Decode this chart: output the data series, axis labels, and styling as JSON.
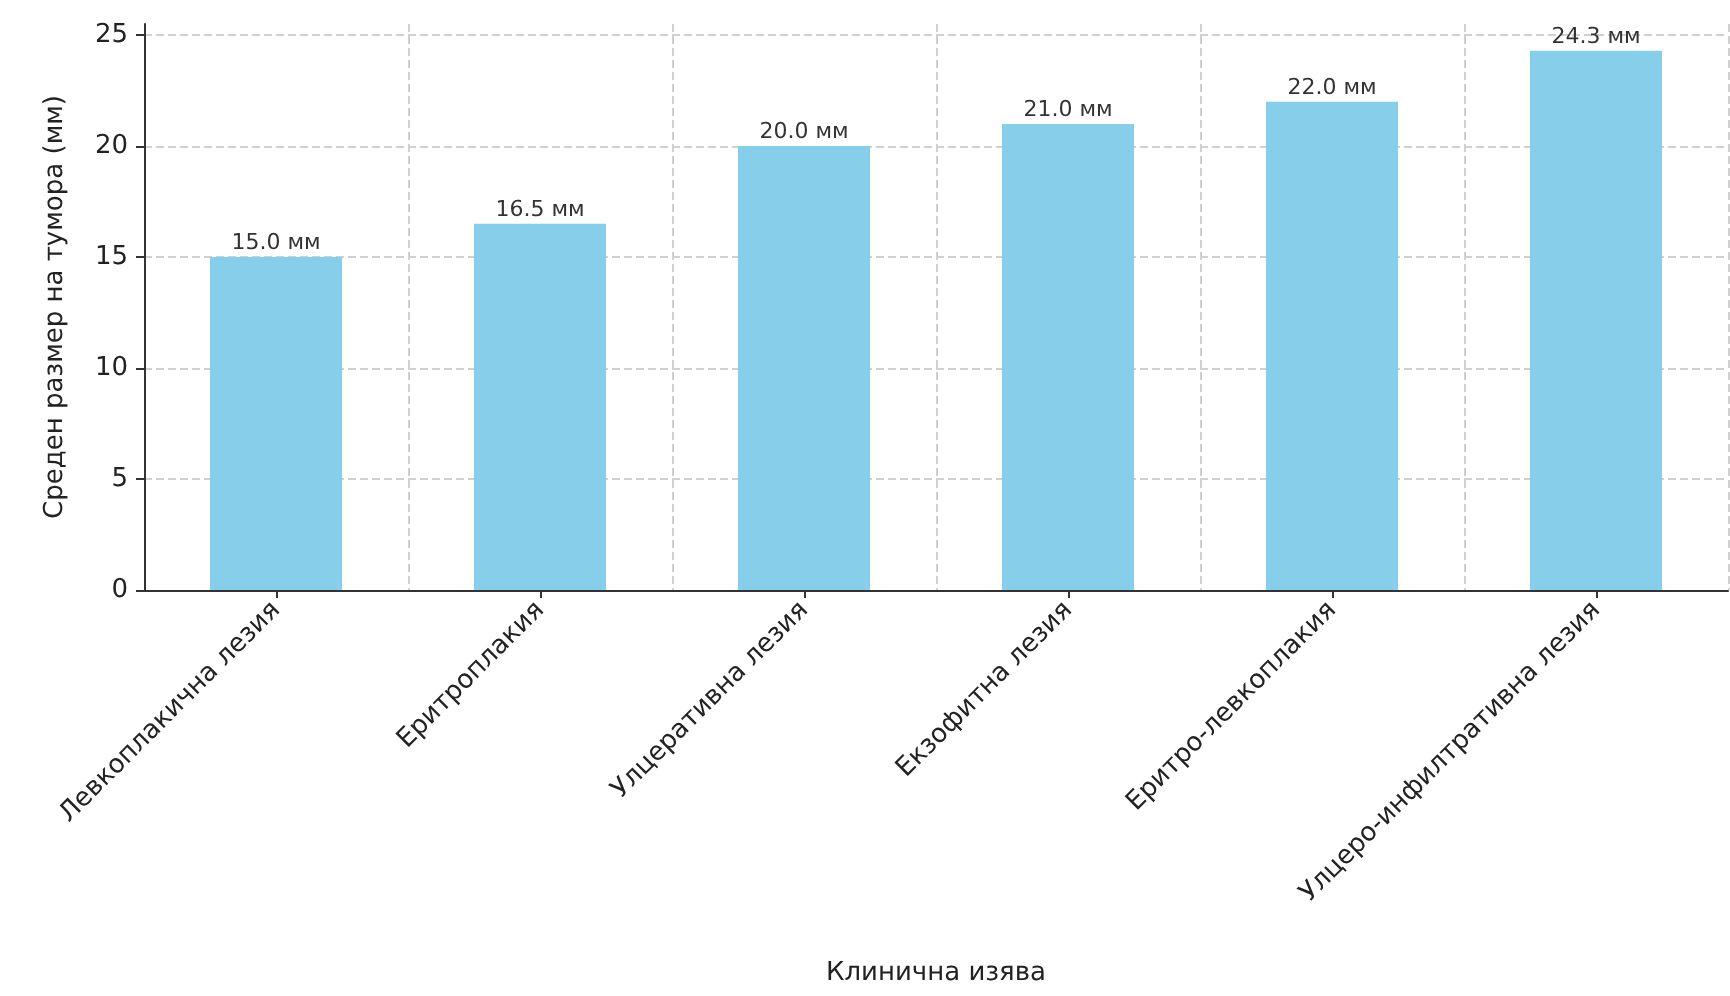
{
  "chart_data": {
    "type": "bar",
    "xlabel": "Клинична изява",
    "ylabel": "Среден размер на тумора (мм)",
    "categories": [
      "Левкоплакична лезия",
      "Еритроплакия",
      "Улцеративна лезия",
      "Екзофитна лезия",
      "Еритро-левкоплакия",
      "Улцеро-инфилтративна лезия"
    ],
    "values": [
      15.0,
      16.5,
      20.0,
      21.0,
      22.0,
      24.3
    ],
    "value_labels": [
      "15.0 мм",
      "16.5 мм",
      "20.0 мм",
      "21.0 мм",
      "22.0 мм",
      "24.3 мм"
    ],
    "color": "#87ceeb",
    "ylim": [
      0,
      25.5
    ],
    "yticks": [
      0,
      5,
      10,
      15,
      20,
      25
    ],
    "grid": true
  }
}
